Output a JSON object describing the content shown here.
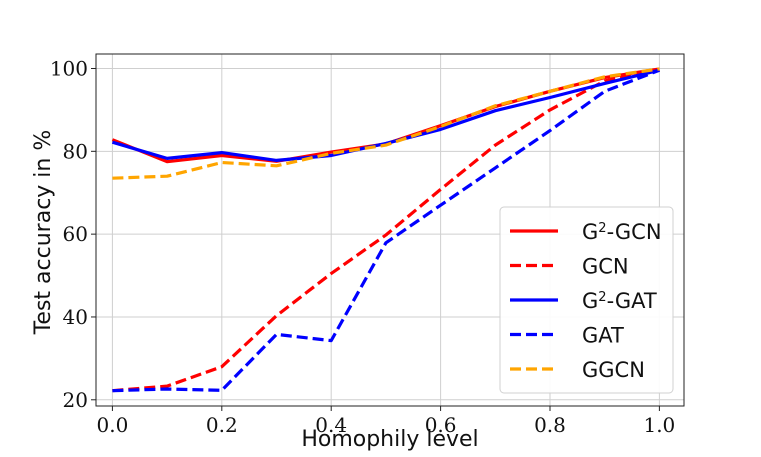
{
  "chart_data": {
    "type": "line",
    "title": "",
    "xlabel": "Homophily level",
    "ylabel": "Test accuracy in %",
    "xlim": [
      -0.03,
      1.045
    ],
    "ylim": [
      18.5,
      103.5
    ],
    "xticks": [
      0.0,
      0.2,
      0.4,
      0.6,
      0.8,
      1.0
    ],
    "xtick_labels": [
      "0.0",
      "0.2",
      "0.4",
      "0.6",
      "0.8",
      "1.0"
    ],
    "yticks": [
      20,
      40,
      60,
      80,
      100
    ],
    "ytick_labels": [
      "20",
      "40",
      "60",
      "80",
      "100"
    ],
    "grid": true,
    "legend_position": "bottom-right",
    "x": [
      0.0,
      0.1,
      0.2,
      0.3,
      0.4,
      0.5,
      0.6,
      0.7,
      0.8,
      0.9,
      1.0
    ],
    "series": [
      {
        "name": "G2-GCN",
        "label_base": "G",
        "label_sup": "2",
        "label_rest": "-GCN",
        "color": "#ff0000",
        "dash": "solid",
        "values": [
          82.8,
          77.5,
          79.0,
          77.6,
          79.8,
          81.8,
          86.2,
          90.8,
          94.5,
          97.8,
          99.9
        ]
      },
      {
        "name": "GCN",
        "label_base": "GCN",
        "label_sup": "",
        "label_rest": "",
        "color": "#ff0000",
        "dash": "dashed",
        "values": [
          22.2,
          23.3,
          28.0,
          40.3,
          50.5,
          59.8,
          70.8,
          81.5,
          90.0,
          97.0,
          99.8
        ]
      },
      {
        "name": "G2-GAT",
        "label_base": "G",
        "label_sup": "2",
        "label_rest": "-GAT",
        "color": "#0000ff",
        "dash": "solid",
        "values": [
          82.2,
          78.3,
          79.7,
          77.8,
          79.0,
          81.9,
          85.3,
          89.8,
          93.0,
          96.4,
          99.6
        ]
      },
      {
        "name": "GAT",
        "label_base": "GAT",
        "label_sup": "",
        "label_rest": "",
        "color": "#0000ff",
        "dash": "dashed",
        "values": [
          22.2,
          22.6,
          22.3,
          35.8,
          34.3,
          57.9,
          67.0,
          76.0,
          85.0,
          94.5,
          99.6
        ]
      },
      {
        "name": "GGCN",
        "label_base": "GGCN",
        "label_sup": "",
        "label_rest": "",
        "color": "#ffa500",
        "dash": "dashed",
        "values": [
          73.5,
          74.0,
          77.3,
          76.5,
          79.5,
          81.5,
          86.0,
          91.0,
          94.5,
          98.0,
          99.9
        ]
      }
    ]
  }
}
